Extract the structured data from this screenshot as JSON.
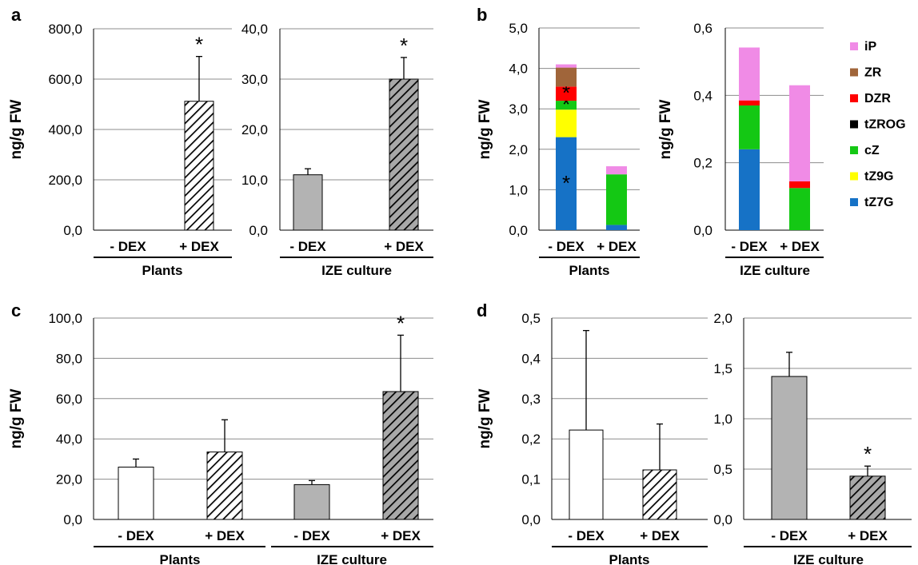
{
  "panel_labels": {
    "a": "a",
    "b": "b",
    "c": "c",
    "d": "d"
  },
  "y_axis_label": "ng/g FW",
  "group_labels": {
    "plants": "Plants",
    "ize": "IZE culture"
  },
  "category_labels": {
    "minus_dex": "- DEX",
    "plus_dex": "+ DEX"
  },
  "colors": {
    "white_fill": "#ffffff",
    "grey_fill": "#b3b3b3",
    "grid": "#8c8c8c",
    "iP": "#f08be6",
    "ZR": "#a0653a",
    "DZR": "#ff0000",
    "tZROG": "#000000",
    "cZ": "#14c814",
    "tZ9G": "#ffff00",
    "tZ7G": "#1672c6"
  },
  "legend": [
    "iP",
    "ZR",
    "DZR",
    "tZROG",
    "cZ",
    "tZ9G",
    "tZ7G"
  ],
  "chart_data": [
    {
      "id": "a-plants",
      "type": "bar",
      "panel": "a",
      "group": "Plants",
      "categories": [
        "- DEX",
        "+ DEX"
      ],
      "values": [
        0,
        512
      ],
      "errors": [
        0,
        178
      ],
      "fills": [
        "white",
        "hatch-white"
      ],
      "significant": [
        false,
        true
      ],
      "ylim": [
        0,
        800
      ],
      "yticks": [
        "0,0",
        "200,0",
        "400,0",
        "600,0",
        "800,0"
      ],
      "ylabel": "ng/g FW"
    },
    {
      "id": "a-ize",
      "type": "bar",
      "panel": "a",
      "group": "IZE culture",
      "categories": [
        "- DEX",
        "+ DEX"
      ],
      "values": [
        11,
        30
      ],
      "errors": [
        1.2,
        4.3
      ],
      "fills": [
        "grey",
        "hatch-grey"
      ],
      "significant": [
        false,
        true
      ],
      "ylim": [
        0,
        40
      ],
      "yticks": [
        "0,0",
        "10,0",
        "20,0",
        "30,0",
        "40,0"
      ]
    },
    {
      "id": "b-plants",
      "type": "bar",
      "stacked": true,
      "panel": "b",
      "group": "Plants",
      "categories": [
        "- DEX",
        "+ DEX"
      ],
      "series": [
        {
          "name": "tZ7G",
          "values": [
            2.3,
            0.13
          ],
          "significant": [
            true,
            false
          ]
        },
        {
          "name": "tZ9G",
          "values": [
            0.68,
            0.0
          ],
          "significant": [
            false,
            false
          ]
        },
        {
          "name": "cZ",
          "values": [
            0.22,
            1.25
          ],
          "significant": [
            true,
            false
          ]
        },
        {
          "name": "tZROG",
          "values": [
            0.0,
            0.0
          ],
          "significant": [
            false,
            false
          ]
        },
        {
          "name": "DZR",
          "values": [
            0.35,
            0.0
          ],
          "significant": [
            true,
            false
          ]
        },
        {
          "name": "ZR",
          "values": [
            0.47,
            0.0
          ],
          "significant": [
            false,
            false
          ]
        },
        {
          "name": "iP",
          "values": [
            0.08,
            0.2
          ],
          "significant": [
            false,
            false
          ]
        }
      ],
      "ylim": [
        0,
        5
      ],
      "yticks": [
        "0,0",
        "1,0",
        "2,0",
        "3,0",
        "4,0",
        "5,0"
      ],
      "ylabel": "ng/g FW"
    },
    {
      "id": "b-ize",
      "type": "bar",
      "stacked": true,
      "panel": "b",
      "group": "IZE culture",
      "categories": [
        "- DEX",
        "+ DEX"
      ],
      "series": [
        {
          "name": "tZ7G",
          "values": [
            0.24,
            0.0
          ]
        },
        {
          "name": "tZ9G",
          "values": [
            0.0,
            0.0
          ]
        },
        {
          "name": "cZ",
          "values": [
            0.13,
            0.125
          ]
        },
        {
          "name": "tZROG",
          "values": [
            0.0,
            0.0
          ]
        },
        {
          "name": "DZR",
          "values": [
            0.015,
            0.02
          ]
        },
        {
          "name": "ZR",
          "values": [
            0.0,
            0.0
          ]
        },
        {
          "name": "iP",
          "values": [
            0.157,
            0.285
          ]
        }
      ],
      "ylim": [
        0,
        0.6
      ],
      "yticks": [
        "0,0",
        "0,2",
        "0,4",
        "0,6"
      ],
      "ylabel": "ng/g FW"
    },
    {
      "id": "c",
      "type": "bar",
      "panel": "c",
      "groups": [
        "Plants",
        "IZE culture"
      ],
      "categories": [
        "- DEX",
        "+ DEX",
        "- DEX",
        "+ DEX"
      ],
      "values": [
        26,
        33.5,
        17.3,
        63.5
      ],
      "errors": [
        4,
        16,
        2,
        28
      ],
      "fills": [
        "white",
        "hatch-white",
        "grey",
        "hatch-grey"
      ],
      "significant": [
        false,
        false,
        false,
        true
      ],
      "ylim": [
        0,
        100
      ],
      "yticks": [
        "0,0",
        "20,0",
        "40,0",
        "60,0",
        "80,0",
        "100,0"
      ],
      "ylabel": "ng/g FW"
    },
    {
      "id": "d-plants",
      "type": "bar",
      "panel": "d",
      "group": "Plants",
      "categories": [
        "- DEX",
        "+ DEX"
      ],
      "values": [
        0.222,
        0.123
      ],
      "errors": [
        0.247,
        0.114
      ],
      "fills": [
        "white",
        "hatch-white"
      ],
      "significant": [
        false,
        false
      ],
      "ylim": [
        0,
        0.5
      ],
      "yticks": [
        "0,0",
        "0,1",
        "0,2",
        "0,3",
        "0,4",
        "0,5"
      ],
      "ylabel": "ng/g FW"
    },
    {
      "id": "d-ize",
      "type": "bar",
      "panel": "d",
      "group": "IZE culture",
      "categories": [
        "- DEX",
        "+ DEX"
      ],
      "values": [
        1.42,
        0.43
      ],
      "errors": [
        0.24,
        0.1
      ],
      "fills": [
        "grey",
        "hatch-grey"
      ],
      "significant": [
        false,
        true
      ],
      "ylim": [
        0,
        2
      ],
      "yticks": [
        "0,0",
        "0,5",
        "1,0",
        "1,5",
        "2,0"
      ]
    }
  ]
}
